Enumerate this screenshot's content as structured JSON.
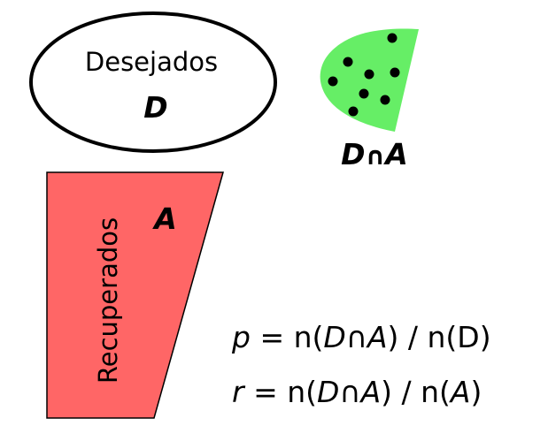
{
  "desired_set": {
    "name": "Desejados",
    "symbol": "D",
    "fill": "#ffffff",
    "stroke": "#000000"
  },
  "intersection": {
    "label_left": "D",
    "label_op": "∩",
    "label_right": "A",
    "fill": "#66ee66",
    "dot_color": "#000000",
    "dot_count": 9
  },
  "retrieved_set": {
    "name": "Recuperados",
    "symbol": "A",
    "fill": "#ff6666",
    "stroke": "#000000"
  },
  "formulas": {
    "precision": {
      "var": "p",
      "eq": " = n(",
      "a": "D",
      "op": "∩",
      "b": "A",
      "mid": ") / n(D)",
      "c": "",
      "end": ""
    },
    "recall": {
      "var": "r",
      "eq": " = n(",
      "a": "D",
      "op": "∩",
      "b": "A",
      "mid": ") / n(",
      "c": "A",
      "end": ")"
    }
  }
}
